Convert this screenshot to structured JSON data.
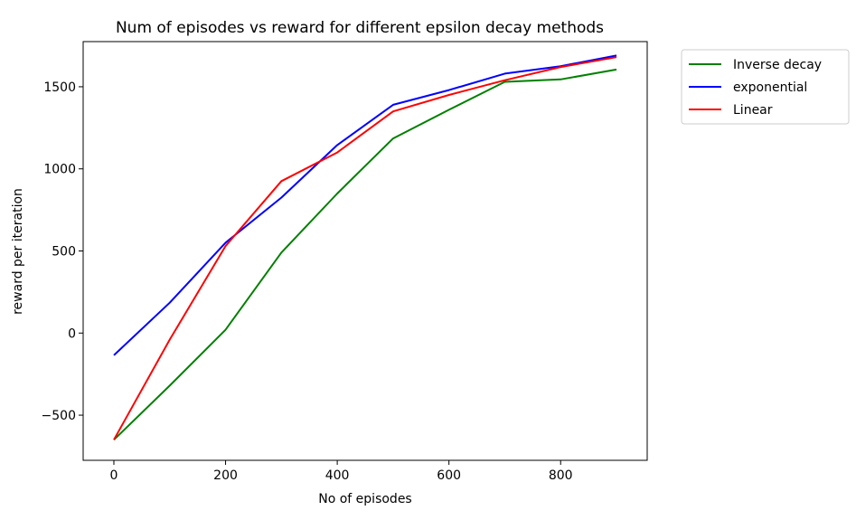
{
  "chart_data": {
    "type": "line",
    "title": "Num of episodes vs reward for different epsilon decay methods",
    "xlabel": "No of episodes",
    "ylabel": "reward per iteration",
    "xlim": [
      -55,
      955
    ],
    "ylim": [
      -775,
      1775
    ],
    "xticks": [
      0,
      200,
      400,
      600,
      800
    ],
    "yticks": [
      -500,
      0,
      500,
      1000,
      1500
    ],
    "grid": false,
    "legend_position": "outside-right",
    "series": [
      {
        "name": "Inverse decay",
        "color": "#008000",
        "x": [
          0,
          100,
          200,
          300,
          400,
          500,
          600,
          700,
          800,
          900
        ],
        "y": [
          -650,
          -320,
          20,
          490,
          850,
          1185,
          1360,
          1530,
          1545,
          1605
        ]
      },
      {
        "name": "exponential",
        "color": "#0000ff",
        "x": [
          0,
          100,
          200,
          300,
          400,
          500,
          600,
          700,
          800,
          900
        ],
        "y": [
          -135,
          185,
          550,
          825,
          1145,
          1390,
          1480,
          1580,
          1625,
          1690
        ]
      },
      {
        "name": "Linear",
        "color": "#ff0000",
        "x": [
          0,
          100,
          200,
          300,
          400,
          500,
          600,
          700,
          800,
          900
        ],
        "y": [
          -650,
          -40,
          530,
          925,
          1100,
          1350,
          1450,
          1540,
          1620,
          1680
        ]
      }
    ]
  }
}
